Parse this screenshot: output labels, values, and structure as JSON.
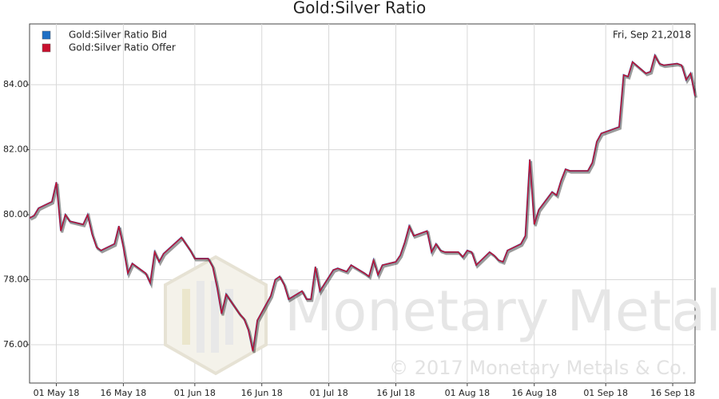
{
  "chart_data": {
    "type": "line",
    "title": "Gold:Silver Ratio",
    "date_label": "Fri, Sep 21,2018",
    "watermark": "Monetary Metals",
    "copyright": "© 2017 Monetary Metals & Co.",
    "x": [
      "2018-04-25",
      "2018-04-26",
      "2018-04-27",
      "2018-04-30",
      "2018-05-01",
      "2018-05-02",
      "2018-05-03",
      "2018-05-04",
      "2018-05-07",
      "2018-05-08",
      "2018-05-09",
      "2018-05-10",
      "2018-05-11",
      "2018-05-14",
      "2018-05-15",
      "2018-05-16",
      "2018-05-17",
      "2018-05-18",
      "2018-05-21",
      "2018-05-22",
      "2018-05-23",
      "2018-05-24",
      "2018-05-25",
      "2018-05-29",
      "2018-05-30",
      "2018-05-31",
      "2018-06-01",
      "2018-06-04",
      "2018-06-05",
      "2018-06-06",
      "2018-06-07",
      "2018-06-08",
      "2018-06-11",
      "2018-06-12",
      "2018-06-13",
      "2018-06-14",
      "2018-06-15",
      "2018-06-18",
      "2018-06-19",
      "2018-06-20",
      "2018-06-21",
      "2018-06-22",
      "2018-06-25",
      "2018-06-26",
      "2018-06-27",
      "2018-06-28",
      "2018-06-29",
      "2018-07-02",
      "2018-07-03",
      "2018-07-05",
      "2018-07-06",
      "2018-07-09",
      "2018-07-10",
      "2018-07-11",
      "2018-07-12",
      "2018-07-13",
      "2018-07-16",
      "2018-07-17",
      "2018-07-18",
      "2018-07-19",
      "2018-07-20",
      "2018-07-23",
      "2018-07-24",
      "2018-07-25",
      "2018-07-26",
      "2018-07-27",
      "2018-07-30",
      "2018-07-31",
      "2018-08-01",
      "2018-08-02",
      "2018-08-03",
      "2018-08-06",
      "2018-08-07",
      "2018-08-08",
      "2018-08-09",
      "2018-08-10",
      "2018-08-13",
      "2018-08-14",
      "2018-08-15",
      "2018-08-16",
      "2018-08-17",
      "2018-08-20",
      "2018-08-21",
      "2018-08-22",
      "2018-08-23",
      "2018-08-24",
      "2018-08-27",
      "2018-08-28",
      "2018-08-29",
      "2018-08-30",
      "2018-08-31",
      "2018-09-04",
      "2018-09-05",
      "2018-09-06",
      "2018-09-07",
      "2018-09-10",
      "2018-09-11",
      "2018-09-12",
      "2018-09-13",
      "2018-09-14",
      "2018-09-17",
      "2018-09-18",
      "2018-09-19",
      "2018-09-20",
      "2018-09-21"
    ],
    "series": [
      {
        "name": "Gold:Silver Ratio Bid",
        "color": "#1f6fc4",
        "values": [
          79.9,
          79.97,
          80.2,
          80.4,
          81.0,
          79.5,
          80.0,
          79.8,
          79.7,
          80.0,
          79.4,
          79.0,
          78.9,
          79.1,
          79.65,
          79.0,
          78.2,
          78.5,
          78.2,
          77.9,
          78.85,
          78.55,
          78.8,
          79.3,
          79.1,
          78.9,
          78.65,
          78.65,
          78.4,
          77.75,
          76.95,
          77.55,
          76.95,
          76.8,
          76.45,
          75.8,
          76.75,
          77.5,
          78.0,
          78.1,
          77.85,
          77.4,
          77.65,
          77.4,
          77.4,
          78.4,
          77.65,
          78.3,
          78.35,
          78.25,
          78.45,
          78.2,
          78.1,
          78.6,
          78.15,
          78.45,
          78.55,
          78.75,
          79.15,
          79.65,
          79.35,
          79.5,
          78.85,
          79.1,
          78.9,
          78.85,
          78.85,
          78.7,
          78.9,
          78.85,
          78.45,
          78.85,
          78.75,
          78.6,
          78.55,
          78.9,
          79.1,
          79.35,
          81.7,
          79.7,
          80.15,
          80.7,
          80.6,
          81.05,
          81.4,
          81.35,
          81.35,
          81.35,
          81.6,
          82.25,
          82.5,
          82.7,
          84.3,
          84.25,
          84.7,
          84.35,
          84.4,
          84.9,
          84.65,
          84.6,
          84.65,
          84.6,
          84.15,
          84.35,
          83.65
        ]
      },
      {
        "name": "Gold:Silver Ratio Offer",
        "color": "#c8102e",
        "values": [
          79.9,
          79.97,
          80.2,
          80.4,
          81.0,
          79.5,
          80.0,
          79.8,
          79.7,
          80.0,
          79.4,
          79.0,
          78.9,
          79.1,
          79.65,
          79.0,
          78.2,
          78.5,
          78.2,
          77.9,
          78.85,
          78.55,
          78.8,
          79.3,
          79.1,
          78.9,
          78.65,
          78.65,
          78.4,
          77.75,
          76.95,
          77.55,
          76.95,
          76.8,
          76.45,
          75.8,
          76.75,
          77.5,
          78.0,
          78.1,
          77.85,
          77.4,
          77.65,
          77.4,
          77.4,
          78.4,
          77.65,
          78.3,
          78.35,
          78.25,
          78.45,
          78.2,
          78.1,
          78.6,
          78.15,
          78.45,
          78.55,
          78.75,
          79.15,
          79.65,
          79.35,
          79.5,
          78.85,
          79.1,
          78.9,
          78.85,
          78.85,
          78.7,
          78.9,
          78.85,
          78.45,
          78.85,
          78.75,
          78.6,
          78.55,
          78.9,
          79.1,
          79.35,
          81.7,
          79.7,
          80.15,
          80.7,
          80.6,
          81.05,
          81.4,
          81.35,
          81.35,
          81.35,
          81.6,
          82.25,
          82.5,
          82.7,
          84.3,
          84.25,
          84.7,
          84.35,
          84.4,
          84.9,
          84.65,
          84.6,
          84.65,
          84.6,
          84.15,
          84.35,
          83.65
        ]
      }
    ],
    "xlim": [
      "2018-04-25",
      "2018-09-21"
    ],
    "xticks": [
      {
        "value": "2018-05-01",
        "label": "01 May 18"
      },
      {
        "value": "2018-05-16",
        "label": "16 May 18"
      },
      {
        "value": "2018-06-01",
        "label": "01 Jun 18"
      },
      {
        "value": "2018-06-16",
        "label": "16 Jun 18"
      },
      {
        "value": "2018-07-01",
        "label": "01 Jul 18"
      },
      {
        "value": "2018-07-16",
        "label": "16 Jul 18"
      },
      {
        "value": "2018-08-01",
        "label": "01 Aug 18"
      },
      {
        "value": "2018-08-16",
        "label": "16 Aug 18"
      },
      {
        "value": "2018-09-01",
        "label": "01 Sep 18"
      },
      {
        "value": "2018-09-16",
        "label": "16 Sep 18"
      }
    ],
    "ylim": [
      74.82,
      85.87
    ],
    "yticks": [
      {
        "value": 76,
        "label": "76.00"
      },
      {
        "value": 78,
        "label": "78.00"
      },
      {
        "value": 80,
        "label": "80.00"
      },
      {
        "value": 82,
        "label": "82.00"
      },
      {
        "value": 84,
        "label": "84.00"
      }
    ],
    "grid": true,
    "legend": "top-left"
  }
}
